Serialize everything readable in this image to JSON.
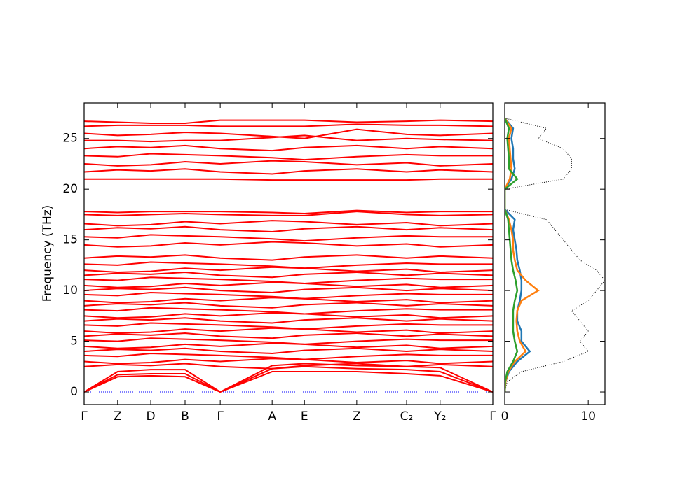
{
  "chart_data": [
    {
      "type": "line",
      "ylabel": "Frequency (THz)",
      "x": [
        0,
        0.082,
        0.163,
        0.247,
        0.333,
        0.46,
        0.539,
        0.667,
        0.789,
        0.871,
        1.0
      ],
      "xlim": [
        0,
        1.0
      ],
      "xticks": [
        {
          "value": 0,
          "label": "Γ"
        },
        {
          "value": 0.082,
          "label": "Z"
        },
        {
          "value": 0.163,
          "label": "D"
        },
        {
          "value": 0.247,
          "label": "B"
        },
        {
          "value": 0.333,
          "label": "Γ"
        },
        {
          "value": 0.46,
          "label": "A"
        },
        {
          "value": 0.539,
          "label": "E"
        },
        {
          "value": 0.667,
          "label": "Z"
        },
        {
          "value": 0.789,
          "label": "C₂"
        },
        {
          "value": 0.871,
          "label": "Y₂"
        },
        {
          "value": 1.0,
          "label": "Γ"
        }
      ],
      "ylim": [
        -1.24,
        28.5
      ],
      "yticks": [
        0,
        5,
        10,
        15,
        20,
        25
      ],
      "zero_line": {
        "value": 0,
        "color": "#0000ff"
      },
      "series": [
        {
          "color": "#ff0000",
          "values": [
            0,
            1.5,
            1.6,
            1.5,
            0,
            2,
            2,
            2,
            1.8,
            1.6,
            0
          ]
        },
        {
          "color": "#ff0000",
          "values": [
            0,
            1.7,
            1.8,
            1.8,
            0,
            2.3,
            2.5,
            2.3,
            2.2,
            2,
            0
          ]
        },
        {
          "color": "#ff0000",
          "values": [
            0,
            2,
            2.2,
            2.2,
            0,
            2.6,
            2.8,
            2.6,
            2.5,
            2.4,
            0
          ]
        },
        {
          "color": "#ff0000",
          "values": [
            2.5,
            2.7,
            2.6,
            2.8,
            2.5,
            2.3,
            2.6,
            2.8,
            2.5,
            2.7,
            2.5
          ]
        },
        {
          "color": "#ff0000",
          "values": [
            3.0,
            2.8,
            2.9,
            3.2,
            3.0,
            3.3,
            3.2,
            2.9,
            3.1,
            2.8,
            3.0
          ]
        },
        {
          "color": "#ff0000",
          "values": [
            3.6,
            3.5,
            3.8,
            3.7,
            3.6,
            3.4,
            3.2,
            3.5,
            3.7,
            3.6,
            3.6
          ]
        },
        {
          "color": "#ff0000",
          "values": [
            4.0,
            4.2,
            4.1,
            4.3,
            4.0,
            3.8,
            4.1,
            4.3,
            4.0,
            4.2,
            4.0
          ]
        },
        {
          "color": "#ff0000",
          "values": [
            4.5,
            4.3,
            4.4,
            4.7,
            4.5,
            4.8,
            4.7,
            4.4,
            4.6,
            4.3,
            4.5
          ]
        },
        {
          "color": "#ff0000",
          "values": [
            5.1,
            5.0,
            5.3,
            5.2,
            5.1,
            4.9,
            4.7,
            5.0,
            5.2,
            5.1,
            5.1
          ]
        },
        {
          "color": "#ff0000",
          "values": [
            5.5,
            5.7,
            5.6,
            5.8,
            5.5,
            5.3,
            5.6,
            5.8,
            5.5,
            5.7,
            5.5
          ]
        },
        {
          "color": "#ff0000",
          "values": [
            6.0,
            5.8,
            5.9,
            6.2,
            6.0,
            6.3,
            6.2,
            5.9,
            6.1,
            5.8,
            6.0
          ]
        },
        {
          "color": "#ff0000",
          "values": [
            6.6,
            6.5,
            6.8,
            6.7,
            6.6,
            6.4,
            6.2,
            6.5,
            6.7,
            6.6,
            6.6
          ]
        },
        {
          "color": "#ff0000",
          "values": [
            7.0,
            7.2,
            7.1,
            7.3,
            7.0,
            6.8,
            7.1,
            7.3,
            7.0,
            7.2,
            7.0
          ]
        },
        {
          "color": "#ff0000",
          "values": [
            7.5,
            7.3,
            7.4,
            7.7,
            7.5,
            7.8,
            7.7,
            7.4,
            7.6,
            7.3,
            7.5
          ]
        },
        {
          "color": "#ff0000",
          "values": [
            8.1,
            8.0,
            8.3,
            8.2,
            8.1,
            7.9,
            7.7,
            8.0,
            8.2,
            8.1,
            8.1
          ]
        },
        {
          "color": "#ff0000",
          "values": [
            8.5,
            8.7,
            8.6,
            8.8,
            8.5,
            8.3,
            8.6,
            8.8,
            8.5,
            8.7,
            8.5
          ]
        },
        {
          "color": "#ff0000",
          "values": [
            9.0,
            8.8,
            8.9,
            9.2,
            9.0,
            9.3,
            9.2,
            8.9,
            9.1,
            8.8,
            9.0
          ]
        },
        {
          "color": "#ff0000",
          "values": [
            9.6,
            9.5,
            9.8,
            9.7,
            9.6,
            9.4,
            9.2,
            9.5,
            9.7,
            9.6,
            9.6
          ]
        },
        {
          "color": "#ff0000",
          "values": [
            10.0,
            10.2,
            10.1,
            10.3,
            10.0,
            9.8,
            10.1,
            10.3,
            10.0,
            10.2,
            10.0
          ]
        },
        {
          "color": "#ff0000",
          "values": [
            10.5,
            10.3,
            10.4,
            10.7,
            10.5,
            10.8,
            10.7,
            10.4,
            10.6,
            10.3,
            10.5
          ]
        },
        {
          "color": "#ff0000",
          "values": [
            11.1,
            11.0,
            11.3,
            11.2,
            11.1,
            10.9,
            10.7,
            11.0,
            11.2,
            11.1,
            11.1
          ]
        },
        {
          "color": "#ff0000",
          "values": [
            11.5,
            11.7,
            11.6,
            11.8,
            11.5,
            11.3,
            11.6,
            11.8,
            11.5,
            11.7,
            11.5
          ]
        },
        {
          "color": "#ff0000",
          "values": [
            12.0,
            11.8,
            11.9,
            12.2,
            12.0,
            12.3,
            12.2,
            11.9,
            12.1,
            11.8,
            12.0
          ]
        },
        {
          "color": "#ff0000",
          "values": [
            12.6,
            12.5,
            12.8,
            12.7,
            12.6,
            12.4,
            12.2,
            12.5,
            12.7,
            12.6,
            12.6
          ]
        },
        {
          "color": "#ff0000",
          "values": [
            13.2,
            13.4,
            13.3,
            13.5,
            13.2,
            13.0,
            13.3,
            13.5,
            13.2,
            13.4,
            13.2
          ]
        },
        {
          "color": "#ff0000",
          "values": [
            14.5,
            14.3,
            14.4,
            14.7,
            14.5,
            14.8,
            14.7,
            14.4,
            14.6,
            14.3,
            14.5
          ]
        },
        {
          "color": "#ff0000",
          "values": [
            15.3,
            15.2,
            15.5,
            15.4,
            15.3,
            15.1,
            14.9,
            15.2,
            15.4,
            15.3,
            15.3
          ]
        },
        {
          "color": "#ff0000",
          "values": [
            16.0,
            16.2,
            16.1,
            16.3,
            16.0,
            15.8,
            16.1,
            16.3,
            16.0,
            16.2,
            16.0
          ]
        },
        {
          "color": "#ff0000",
          "values": [
            16.6,
            16.4,
            16.5,
            16.8,
            16.6,
            16.9,
            16.8,
            16.5,
            16.7,
            16.4,
            16.6
          ]
        },
        {
          "color": "#ff0000",
          "values": [
            17.5,
            17.4,
            17.5,
            17.6,
            17.5,
            17.4,
            17.4,
            17.8,
            17.5,
            17.4,
            17.5
          ]
        },
        {
          "color": "#ff0000",
          "values": [
            17.8,
            17.7,
            17.8,
            17.8,
            17.8,
            17.7,
            17.6,
            17.9,
            17.7,
            17.8,
            17.8
          ]
        },
        {
          "color": "#ff0000",
          "values": [
            21.0,
            21.0,
            21.0,
            21.0,
            21.0,
            20.9,
            20.9,
            20.9,
            20.9,
            21.0,
            21.0
          ]
        },
        {
          "color": "#ff0000",
          "values": [
            21.7,
            21.9,
            21.8,
            22.0,
            21.7,
            21.5,
            21.8,
            22.0,
            21.7,
            21.9,
            21.7
          ]
        },
        {
          "color": "#ff0000",
          "values": [
            22.5,
            22.3,
            22.4,
            22.7,
            22.5,
            22.8,
            22.7,
            22.4,
            22.6,
            22.3,
            22.5
          ]
        },
        {
          "color": "#ff0000",
          "values": [
            23.3,
            23.2,
            23.5,
            23.4,
            23.3,
            23.1,
            22.9,
            23.2,
            23.4,
            23.3,
            23.3
          ]
        },
        {
          "color": "#ff0000",
          "values": [
            24.0,
            24.2,
            24.1,
            24.3,
            24.0,
            23.8,
            24.1,
            24.3,
            24.0,
            24.2,
            24.0
          ]
        },
        {
          "color": "#ff0000",
          "values": [
            24.8,
            24.8,
            24.7,
            24.8,
            24.8,
            25.1,
            25.3,
            24.8,
            25.0,
            24.9,
            24.8
          ]
        },
        {
          "color": "#ff0000",
          "values": [
            25.5,
            25.3,
            25.4,
            25.6,
            25.5,
            25.2,
            25.0,
            25.9,
            25.4,
            25.3,
            25.5
          ]
        },
        {
          "color": "#ff0000",
          "values": [
            26.2,
            26.3,
            26.3,
            26.3,
            26.2,
            26.2,
            26.2,
            26.4,
            26.3,
            26.3,
            26.2
          ]
        },
        {
          "color": "#ff0000",
          "values": [
            26.7,
            26.6,
            26.5,
            26.5,
            26.8,
            26.8,
            26.8,
            26.6,
            26.7,
            26.8,
            26.7
          ]
        }
      ]
    },
    {
      "type": "dos",
      "y": [
        0,
        1,
        2,
        3,
        4,
        5,
        6,
        7,
        8,
        9,
        10,
        11,
        12,
        13,
        14,
        15,
        16,
        17,
        18,
        19,
        20,
        21,
        22,
        23,
        24,
        25,
        26,
        27
      ],
      "xlim": [
        0,
        12.0
      ],
      "xticks": [
        0,
        10
      ],
      "series": [
        {
          "color": "#000000",
          "style": "dotted",
          "values": [
            0,
            0.3,
            2,
            7,
            10,
            9,
            10,
            9,
            8,
            10,
            11,
            12,
            11,
            9,
            8,
            7,
            6,
            5,
            0,
            0,
            0,
            7,
            8,
            8,
            7,
            4,
            5,
            0
          ]
        },
        {
          "color": "#1f77b4",
          "values": [
            0,
            0.1,
            0.5,
            1.5,
            3,
            2,
            2,
            1.5,
            1.5,
            1.8,
            2,
            2,
            1.8,
            1.5,
            1.4,
            1.2,
            1,
            1.2,
            0,
            0,
            0,
            0.8,
            1.2,
            1,
            1,
            0.8,
            1,
            0
          ]
        },
        {
          "color": "#ff7f0e",
          "values": [
            0,
            0.1,
            0.4,
            1.2,
            2.5,
            1.8,
            1.5,
            1.4,
            1.5,
            2,
            4,
            2.5,
            1.5,
            1.2,
            1,
            1,
            0.8,
            0.5,
            0,
            0,
            0,
            0.6,
            0.8,
            0.7,
            0.6,
            0.5,
            0.8,
            0
          ]
        },
        {
          "color": "#2ca02c",
          "values": [
            0,
            0.05,
            0.3,
            1,
            1.5,
            1.2,
            1,
            1,
            1,
            1.2,
            1.5,
            1.3,
            1,
            0.8,
            0.7,
            0.6,
            0.5,
            0.4,
            0,
            0,
            0,
            1.5,
            0.5,
            0.5,
            0.4,
            0.3,
            0.5,
            0
          ]
        }
      ]
    }
  ]
}
